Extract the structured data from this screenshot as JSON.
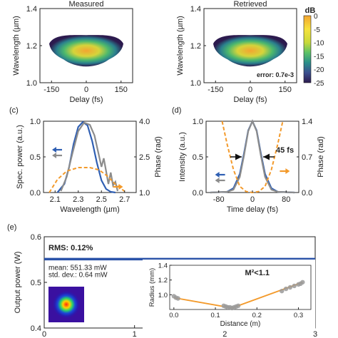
{
  "figure": {
    "panel_labels": [
      "(c)",
      "(d)",
      "(e)"
    ]
  },
  "chart_data": [
    {
      "id": "a",
      "type": "heatmap",
      "title": "Measured",
      "xlabel": "Delay (fs)",
      "ylabel": "Wavelength (µm)",
      "xlim": [
        -200,
        200
      ],
      "ylim": [
        1.0,
        1.4
      ],
      "xticks": [
        "-150",
        "0",
        "150"
      ],
      "yticks": [
        "1.0",
        "1.2",
        "1.4"
      ],
      "center_delay_fs": 0,
      "center_wavelength_um": 1.18
    },
    {
      "id": "b",
      "type": "heatmap",
      "title": "Retrieved",
      "xlabel": "Delay (fs)",
      "ylabel": "Wavelength (µm)",
      "xlim": [
        -200,
        200
      ],
      "ylim": [
        1.0,
        1.4
      ],
      "xticks": [
        "-150",
        "0",
        "150"
      ],
      "yticks": [
        "1.0",
        "1.2",
        "1.4"
      ],
      "annotation": "error: 0.7e-3",
      "colorbar": {
        "unit": "dB",
        "ticks": [
          "0",
          "-5",
          "-10",
          "-15",
          "-20",
          "-25"
        ],
        "range": [
          -25,
          0
        ],
        "colors": [
          "#2c1a4e",
          "#3b4f8f",
          "#2a8f8a",
          "#5cc267",
          "#c8d93a",
          "#f6e23d",
          "#f3a530"
        ]
      }
    },
    {
      "id": "c",
      "type": "line",
      "xlabel": "Wavelength (µm)",
      "ylabel": "Spec. power (a.u.)",
      "y2label": "Phase (rad)",
      "xlim": [
        2.0,
        2.8
      ],
      "ylim": [
        0.0,
        1.0
      ],
      "y2lim": [
        1.0,
        4.0
      ],
      "xticks": [
        "2.1",
        "2.3",
        "2.5",
        "2.7"
      ],
      "yticks": [
        "0.0",
        "0.5",
        "1.0"
      ],
      "y2ticks": [
        "1.0",
        "2.5",
        "4.0"
      ],
      "series": [
        {
          "color": "#2f5fb3",
          "x": [
            2.12,
            2.18,
            2.22,
            2.26,
            2.3,
            2.34,
            2.38,
            2.42,
            2.46,
            2.5,
            2.54,
            2.58,
            2.62
          ],
          "y": [
            0.0,
            0.12,
            0.35,
            0.68,
            0.92,
            0.99,
            0.94,
            0.72,
            0.42,
            0.17,
            0.05,
            0.01,
            0.0
          ]
        },
        {
          "color": "#8c8c8c",
          "x": [
            2.15,
            2.2,
            2.25,
            2.3,
            2.35,
            2.4,
            2.44,
            2.47,
            2.5,
            2.52,
            2.54,
            2.56,
            2.58,
            2.6,
            2.62,
            2.64
          ],
          "y": [
            0.02,
            0.22,
            0.55,
            0.86,
            0.98,
            0.95,
            0.8,
            0.58,
            0.36,
            0.48,
            0.3,
            0.12,
            0.28,
            0.1,
            0.15,
            0.02
          ]
        },
        {
          "color": "#f39a2b",
          "dashed": true,
          "axis": "y2",
          "x": [
            2.05,
            2.12,
            2.2,
            2.3,
            2.4,
            2.48,
            2.55,
            2.62,
            2.7
          ],
          "y": [
            1.0,
            1.55,
            1.9,
            2.05,
            2.05,
            1.95,
            1.7,
            1.35,
            1.05
          ]
        }
      ],
      "arrows": [
        {
          "color": "#2f5fb3",
          "dir": "left",
          "x": 2.16,
          "y": 0.6
        },
        {
          "color": "#8c8c8c",
          "dir": "left",
          "x": 2.16,
          "y": 0.52
        },
        {
          "color": "#f39a2b",
          "dir": "right",
          "x": 2.6,
          "y": 0.08
        }
      ]
    },
    {
      "id": "d",
      "type": "line",
      "xlabel": "Time delay (fs)",
      "ylabel": "Intensity (a.u.)",
      "y2label": "Phase (rad)",
      "xlim": [
        -110,
        110
      ],
      "ylim": [
        0.0,
        1.0
      ],
      "y2lim": [
        0.0,
        1.4
      ],
      "xticks": [
        "-80",
        "0",
        "80"
      ],
      "yticks": [
        "0.0",
        "0.5",
        "1.0"
      ],
      "y2ticks": [
        "0.0",
        "0.7",
        "1.4"
      ],
      "annotation": "45 fs",
      "series": [
        {
          "color": "#2f5fb3",
          "x": [
            -100,
            -60,
            -45,
            -30,
            -20,
            -10,
            0,
            10,
            20,
            30,
            45,
            60,
            100
          ],
          "y": [
            0,
            0.01,
            0.06,
            0.26,
            0.55,
            0.87,
            1.0,
            0.87,
            0.55,
            0.26,
            0.06,
            0.01,
            0
          ]
        },
        {
          "color": "#8c8c8c",
          "x": [
            -100,
            -60,
            -45,
            -30,
            -20,
            -10,
            0,
            10,
            20,
            30,
            45,
            60,
            100
          ],
          "y": [
            0,
            0.01,
            0.04,
            0.22,
            0.52,
            0.86,
            1.0,
            0.86,
            0.52,
            0.22,
            0.04,
            0.01,
            0
          ]
        },
        {
          "color": "#f39a2b",
          "dashed": true,
          "axis": "y2",
          "x": [
            -72,
            -60,
            -45,
            -30,
            -15,
            0,
            15,
            30,
            45,
            60,
            72
          ],
          "y": [
            1.4,
            0.95,
            0.45,
            0.12,
            0.02,
            0.0,
            0.02,
            0.12,
            0.45,
            0.95,
            1.4
          ]
        }
      ],
      "arrows": [
        {
          "color": "#2f5fb3",
          "dir": "left",
          "x": -65,
          "y": 0.25
        },
        {
          "color": "#8c8c8c",
          "dir": "left",
          "x": -65,
          "y": 0.17
        },
        {
          "color": "#f39a2b",
          "dir": "right",
          "x": 65,
          "y": 0.3
        }
      ]
    },
    {
      "id": "e",
      "type": "line",
      "ylabel": "Output power (W)",
      "xlim": [
        0,
        3
      ],
      "ylim": [
        0.4,
        0.6
      ],
      "xticks": [
        "0",
        "1",
        "2",
        "3"
      ],
      "yticks": [
        "0.4",
        "0.5",
        "0.6"
      ],
      "series": [
        {
          "color": "#2a52a8",
          "x": [
            0,
            3
          ],
          "y": [
            0.551,
            0.551
          ]
        }
      ],
      "texts": {
        "rms": "RMS: 0.12%",
        "mean": "mean: 551.33 mW",
        "std": "std. dev.: 0.64 mW"
      },
      "inset": {
        "type": "scatter",
        "xlabel": "Distance (m)",
        "ylabel": "Radius (mm)",
        "annotation": "M²<1.1",
        "xlim": [
          -0.01,
          0.33
        ],
        "ylim": [
          0.8,
          1.4
        ],
        "xticks": [
          "0.0",
          "0.1",
          "0.2",
          "0.3"
        ],
        "yticks": [
          "1.0",
          "1.2",
          "1.4"
        ],
        "points_x": [
          0.0,
          0.005,
          0.01,
          0.12,
          0.125,
          0.13,
          0.135,
          0.14,
          0.145,
          0.15,
          0.155,
          0.26,
          0.27,
          0.28,
          0.29,
          0.3,
          0.305,
          0.31
        ],
        "points_y": [
          0.98,
          0.96,
          0.95,
          0.85,
          0.84,
          0.83,
          0.83,
          0.82,
          0.83,
          0.84,
          0.85,
          1.05,
          1.08,
          1.1,
          1.12,
          1.14,
          1.15,
          1.17
        ],
        "fit_x": [
          0.0,
          0.14,
          0.31
        ],
        "fit_y": [
          0.96,
          0.82,
          1.17
        ],
        "point_color": "#9a9a9a",
        "fit_color": "#f39a2b"
      }
    }
  ]
}
